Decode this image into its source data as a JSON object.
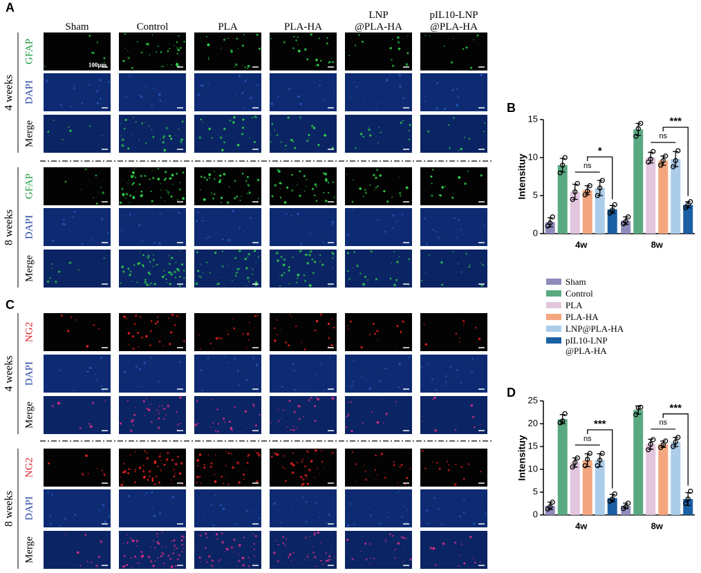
{
  "panels": [
    "A",
    "B",
    "C",
    "D"
  ],
  "columns": [
    "Sham",
    "Control",
    "PLA",
    "PLA-HA",
    "LNP\n@PLA-HA",
    "pIL10-LNP\n@PLA-HA"
  ],
  "scale_bar": "100μm",
  "image_panels": [
    {
      "groups": [
        {
          "label": "4 weeks",
          "rows": [
            {
              "text": "GFAP",
              "color": "#1a9b3c"
            },
            {
              "text": "DAPI",
              "color": "#1f3fa0"
            },
            {
              "text": "Merge",
              "color": "#000000"
            }
          ]
        },
        {
          "label": "8 weeks",
          "rows": [
            {
              "text": "GFAP",
              "color": "#1a9b3c"
            },
            {
              "text": "DAPI",
              "color": "#1f3fa0"
            },
            {
              "text": "Merge",
              "color": "#000000"
            }
          ]
        }
      ]
    },
    {
      "groups": [
        {
          "label": "4 weeks",
          "rows": [
            {
              "text": "NG2",
              "color": "#e0202a"
            },
            {
              "text": "DAPI",
              "color": "#1f3fa0"
            },
            {
              "text": "Merge",
              "color": "#000000"
            }
          ]
        },
        {
          "label": "8 weeks",
          "rows": [
            {
              "text": "NG2",
              "color": "#e0202a"
            },
            {
              "text": "DAPI",
              "color": "#1f3fa0"
            },
            {
              "text": "Merge",
              "color": "#000000"
            }
          ]
        }
      ]
    }
  ],
  "chart_data": [
    {
      "type": "bar",
      "ylabel": "Intensituy",
      "categories": [
        "4w",
        "8w"
      ],
      "ylim": [
        0,
        15
      ],
      "yticks": [
        0,
        5,
        10,
        15
      ],
      "significance": [
        [
          "ns",
          "*"
        ],
        [
          "ns",
          "***"
        ]
      ],
      "series": [
        {
          "name": "Sham",
          "color": "#8e8bbb",
          "values": [
            1.5,
            1.7
          ],
          "errors": [
            0.6,
            0.5
          ],
          "points": [
            [
              1.0,
              1.4,
              2.2
            ],
            [
              1.3,
              1.6,
              2.2
            ]
          ]
        },
        {
          "name": "Control",
          "color": "#5aa981",
          "values": [
            9.0,
            13.7
          ],
          "errors": [
            0.9,
            0.8
          ],
          "points": [
            [
              8.0,
              9.0,
              10.0
            ],
            [
              12.8,
              13.8,
              14.5
            ]
          ]
        },
        {
          "name": "PLA",
          "color": "#e2c6de",
          "values": [
            5.5,
            10.0
          ],
          "errors": [
            1.0,
            0.7
          ],
          "points": [
            [
              4.5,
              5.5,
              6.6
            ],
            [
              9.4,
              9.8,
              10.8
            ]
          ]
        },
        {
          "name": "PLA-HA",
          "color": "#f4a67f",
          "values": [
            5.7,
            9.6
          ],
          "errors": [
            0.6,
            0.6
          ],
          "points": [
            [
              5.1,
              5.6,
              6.3
            ],
            [
              9.0,
              9.6,
              10.2
            ]
          ]
        },
        {
          "name": "LNP@PLA-HA",
          "color": "#abcdea",
          "values": [
            6.0,
            9.8
          ],
          "errors": [
            1.0,
            1.0
          ],
          "points": [
            [
              5.0,
              6.0,
              7.0
            ],
            [
              8.8,
              9.6,
              10.9
            ]
          ]
        },
        {
          "name": "pIL10-LNP\n@PLA-HA",
          "color": "#1b5fa4",
          "values": [
            3.2,
            3.8
          ],
          "errors": [
            0.5,
            0.4
          ],
          "points": [
            [
              2.7,
              3.1,
              3.8
            ],
            [
              3.4,
              3.8,
              4.2
            ]
          ]
        }
      ]
    },
    {
      "type": "bar",
      "ylabel": "Intensituy",
      "categories": [
        "4w",
        "8w"
      ],
      "ylim": [
        0,
        25
      ],
      "yticks": [
        0,
        5,
        10,
        15,
        20,
        25
      ],
      "significance": [
        [
          "ns",
          "***"
        ],
        [
          "ns",
          "***"
        ]
      ],
      "series": [
        {
          "color": "#8e8bbb",
          "values": [
            2.0,
            2.0
          ],
          "errors": [
            0.8,
            0.6
          ],
          "points": [
            [
              1.3,
              1.8,
              2.8
            ],
            [
              1.4,
              1.8,
              2.6
            ]
          ]
        },
        {
          "color": "#5aa981",
          "values": [
            21.0,
            23.0
          ],
          "errors": [
            1.0,
            0.9
          ],
          "points": [
            [
              20.2,
              20.6,
              22.2
            ],
            [
              22.0,
              23.5,
              23.6
            ]
          ]
        },
        {
          "color": "#e2c6de",
          "values": [
            11.5,
            15.5
          ],
          "errors": [
            1.0,
            1.1
          ],
          "points": [
            [
              10.5,
              11.5,
              12.5
            ],
            [
              14.3,
              15.5,
              16.5
            ]
          ]
        },
        {
          "color": "#f4a67f",
          "values": [
            12.0,
            15.5
          ],
          "errors": [
            1.4,
            0.7
          ],
          "points": [
            [
              10.8,
              12.2,
              13.5
            ],
            [
              14.8,
              15.4,
              16.2
            ]
          ]
        },
        {
          "color": "#abcdea",
          "values": [
            12.0,
            16.0
          ],
          "errors": [
            1.4,
            1.0
          ],
          "points": [
            [
              10.8,
              12.0,
              13.5
            ],
            [
              15.0,
              16.0,
              17.0
            ]
          ]
        },
        {
          "color": "#1b5fa4",
          "values": [
            3.7,
            3.5
          ],
          "errors": [
            0.8,
            1.4
          ],
          "points": [
            [
              3.0,
              3.5,
              4.6
            ],
            [
              2.5,
              3.5,
              5.2
            ]
          ]
        }
      ]
    }
  ]
}
